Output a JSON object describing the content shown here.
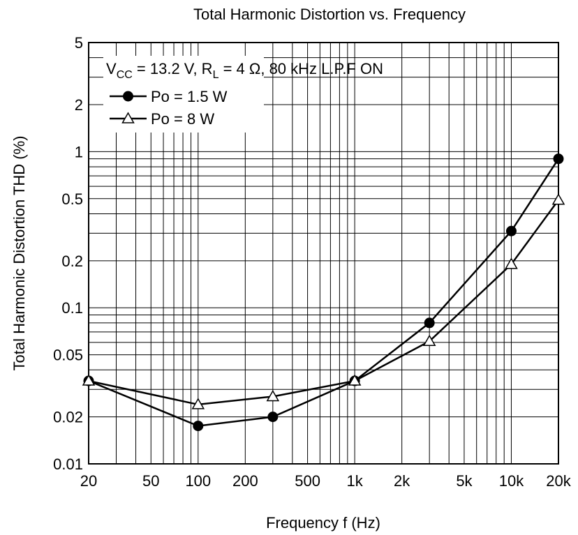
{
  "chart_data": {
    "type": "line",
    "title": "Total Harmonic Distortion vs. Frequency",
    "xlabel": "Frequency  f  (Hz)",
    "ylabel": "Total Harmonic Distortion  THD  (%)",
    "x_scale": "log",
    "y_scale": "log",
    "xlim": [
      20,
      20000
    ],
    "ylim": [
      0.01,
      5
    ],
    "grid": true,
    "x_ticks": [
      {
        "value": 20,
        "label": "20"
      },
      {
        "value": 50,
        "label": "50"
      },
      {
        "value": 100,
        "label": "100"
      },
      {
        "value": 200,
        "label": "200"
      },
      {
        "value": 500,
        "label": "500"
      },
      {
        "value": 1000,
        "label": "1k"
      },
      {
        "value": 2000,
        "label": "2k"
      },
      {
        "value": 5000,
        "label": "5k"
      },
      {
        "value": 10000,
        "label": "10k"
      },
      {
        "value": 20000,
        "label": "20k"
      }
    ],
    "y_ticks": [
      {
        "value": 0.01,
        "label": "0.01"
      },
      {
        "value": 0.02,
        "label": "0.02"
      },
      {
        "value": 0.05,
        "label": "0.05"
      },
      {
        "value": 0.1,
        "label": "0.1"
      },
      {
        "value": 0.2,
        "label": "0.2"
      },
      {
        "value": 0.5,
        "label": "0.5"
      },
      {
        "value": 1,
        "label": "1"
      },
      {
        "value": 2,
        "label": "2"
      },
      {
        "value": 5,
        "label": "5"
      }
    ],
    "condition": {
      "v_main": "V",
      "v_sub": "CC",
      "v_rest": " = 13.2 V, R",
      "r_sub": "L",
      "r_rest": " = 4 Ω, 80 kHz L.P.F ON"
    },
    "legend_position": "top-left",
    "series": [
      {
        "name": "Po = 1.5 W",
        "marker": "filled-circle",
        "x": [
          20,
          100,
          300,
          1000,
          3000,
          10000,
          20000
        ],
        "y": [
          0.034,
          0.0175,
          0.02,
          0.034,
          0.08,
          0.31,
          0.9
        ]
      },
      {
        "name": "Po = 8 W",
        "marker": "open-triangle",
        "x": [
          20,
          100,
          300,
          1000,
          3000,
          10000,
          20000
        ],
        "y": [
          0.034,
          0.024,
          0.027,
          0.034,
          0.061,
          0.19,
          0.49
        ]
      }
    ]
  }
}
